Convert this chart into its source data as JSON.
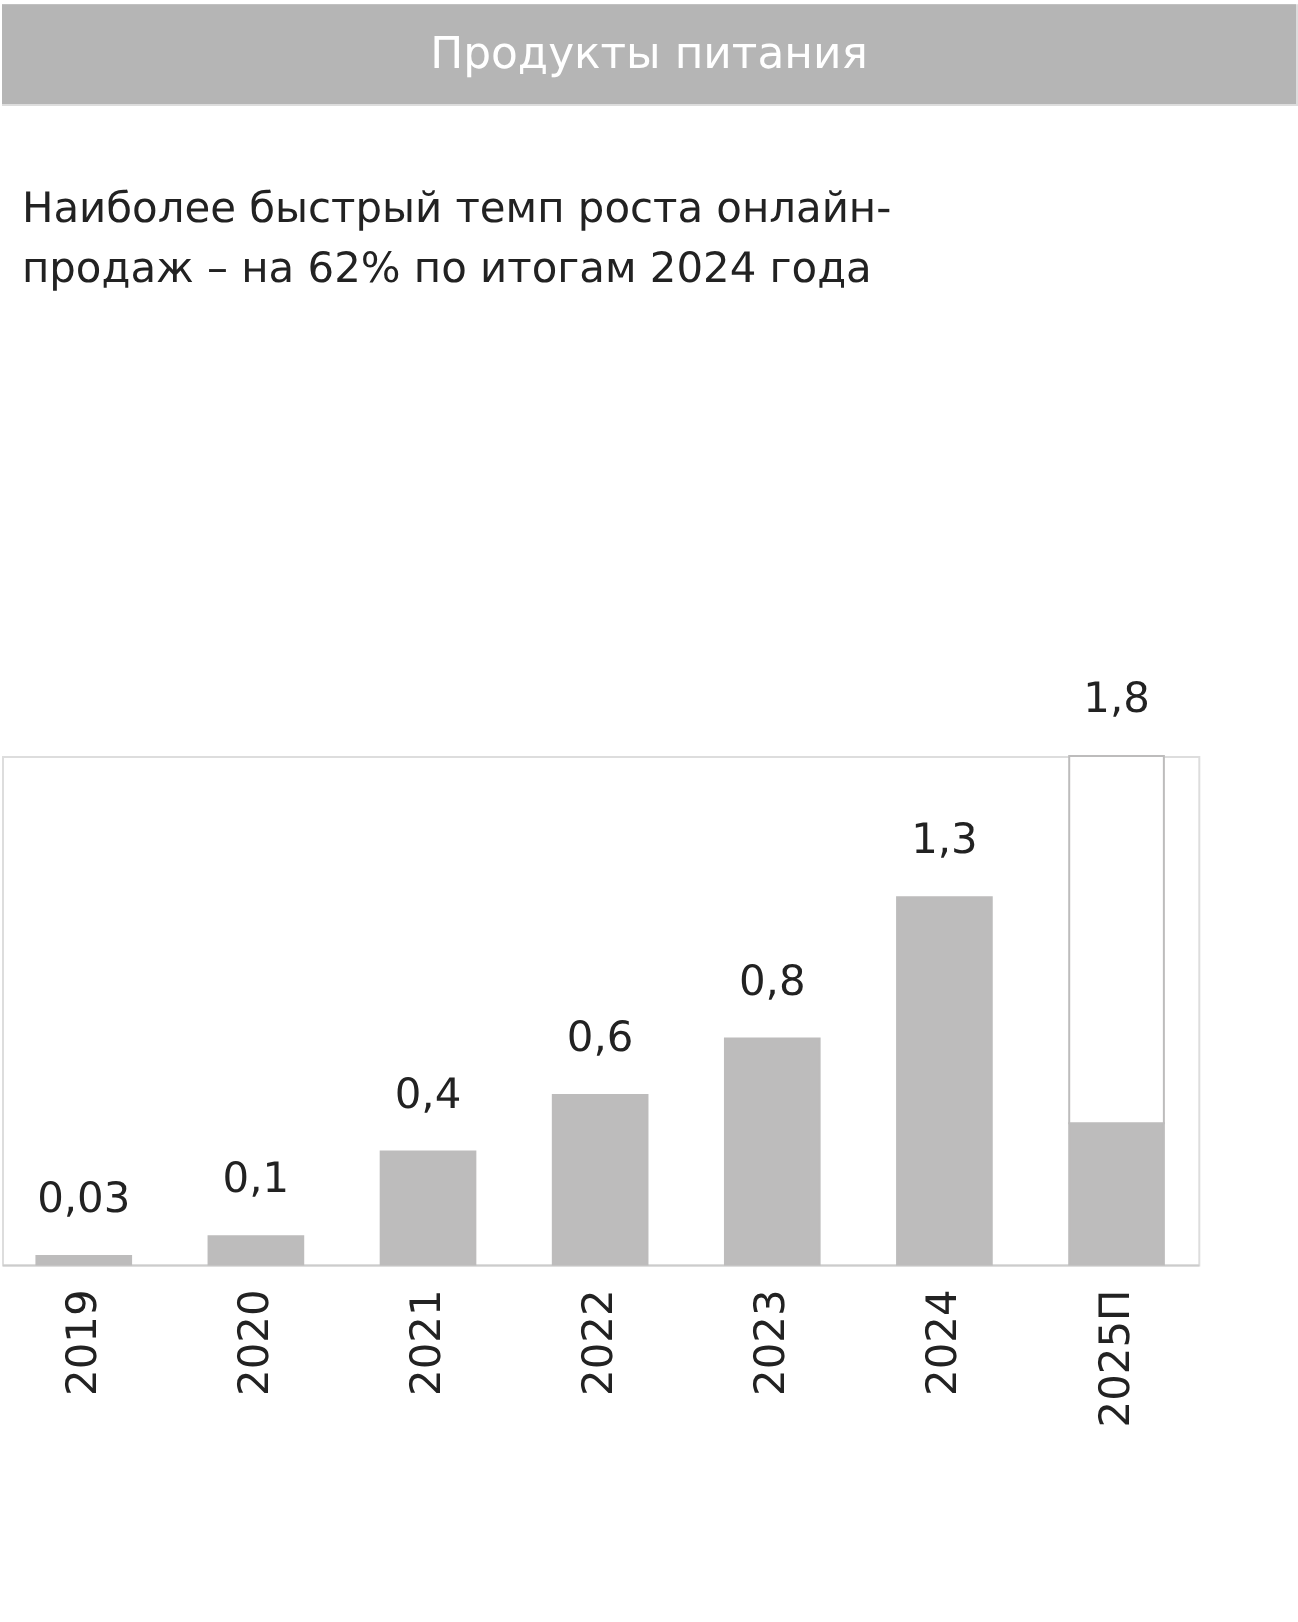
{
  "chart_data": {
    "type": "bar",
    "title": "Продукты питания",
    "subtitle": "Наиболее быстрый темп роста онлайн-продаж – на 62% по итогам 2024 года",
    "categories": [
      "2019",
      "2020",
      "2021",
      "2022",
      "2023",
      "2024",
      "2025П"
    ],
    "stacked": true,
    "series": [
      {
        "color": "#bdbcbc",
        "values": [
          0.03,
          0.1,
          0.4,
          0.6,
          0.8,
          1.3,
          0.5
        ],
        "value_labels": [
          "0,03",
          "0,1",
          "0,4",
          "0,6",
          "0,8",
          "1,3",
          null
        ]
      },
      {
        "color": "#ffffff",
        "values": [
          null,
          null,
          null,
          null,
          null,
          null,
          1.3
        ]
      }
    ],
    "totals": [
      null,
      null,
      null,
      null,
      null,
      null,
      "1,8"
    ],
    "grid": false,
    "legend": false
  }
}
